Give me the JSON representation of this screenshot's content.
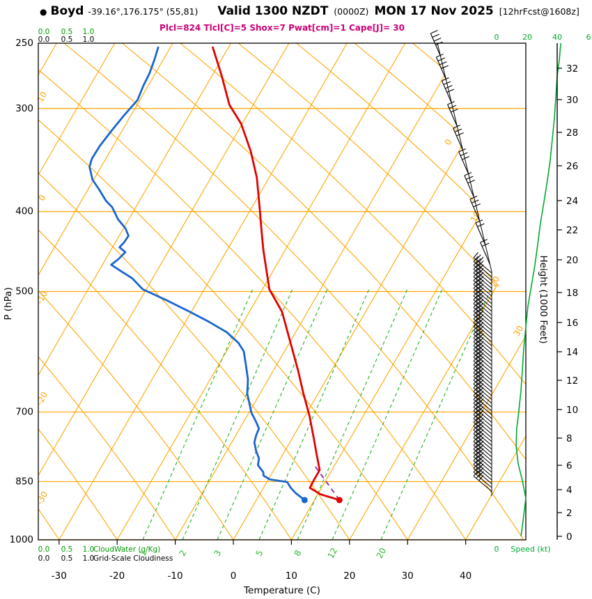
{
  "header": {
    "marker": "●",
    "station": "Boyd",
    "coords": "-39.16°,176.175° (55,81)",
    "valid": "Valid 1300 NZDT",
    "valid_z": "(0000Z)",
    "valid_date": "MON 17 Nov 2025",
    "fcst_tag": "[12hrFcst@1608z]",
    "indices": "Plcl=824 Tlcl[C]=5 Shox=7 Pwat[cm]=1 Cape[J]= 30"
  },
  "axes": {
    "pressure": {
      "title": "P (hPa)",
      "ticks": [
        "250",
        "300",
        "400",
        "500",
        "700",
        "850",
        "1000"
      ]
    },
    "temperature": {
      "title": "Temperature (C)",
      "ticks": [
        "-30",
        "-20",
        "-10",
        "0",
        "10",
        "20",
        "30",
        "40"
      ]
    },
    "height": {
      "title": "Height (1000 Feet)",
      "ticks": [
        "0",
        "2",
        "4",
        "6",
        "8",
        "10",
        "12",
        "14",
        "16",
        "18",
        "20",
        "22",
        "24",
        "26",
        "28",
        "30",
        "32"
      ]
    },
    "speed": {
      "title": "Speed (kt)",
      "top_ticks": [
        "0",
        "20",
        "40",
        "6"
      ],
      "bottom_tick": "0"
    },
    "cloudwater": {
      "scale": [
        "0.0",
        "0.5",
        "1.0"
      ],
      "label": "CloudWater (g/Kg)"
    },
    "cloudiness": {
      "scale": [
        "0.0",
        "0.5",
        "1.0"
      ],
      "label": "Grid-Scale Cloudiness"
    },
    "isotherm_labels_left": [
      "10",
      "0",
      "-10",
      "-20",
      "-30"
    ],
    "isotherm_labels_right": [
      "0",
      "10",
      "20",
      "30"
    ],
    "mixing_ratio_labels": [
      "1",
      "2",
      "3",
      "5",
      "8",
      "12",
      "20"
    ]
  },
  "colors": {
    "grid_orange": "#ffa500",
    "mixing_green": "#2eb82e",
    "speed_green": "#00a830",
    "label_green": "#009900",
    "temp_red": "#e10000",
    "dew_blue": "#1a66cc",
    "parcel_purple": "#993399",
    "indices_magenta": "#cc0077"
  },
  "chart_data": {
    "type": "skewt-log-p-sounding",
    "pressure_axis_range_hPa": [
      250,
      1000
    ],
    "temperature_axis_range_C": [
      -35,
      45
    ],
    "height_axis_range_kft": [
      0,
      32
    ],
    "speed_axis_range_kt": [
      0,
      60
    ],
    "pressure_gridlines_hPa": [
      300,
      400,
      500,
      700,
      850,
      1000
    ],
    "temperature_profile_p_t": [
      [
        895,
        14.3
      ],
      [
        881,
        10.5
      ],
      [
        865,
        8.0
      ],
      [
        848,
        7.9
      ],
      [
        823,
        7.9
      ],
      [
        791,
        6.0
      ],
      [
        753,
        3.7
      ],
      [
        707,
        0.7
      ],
      [
        664,
        -2.6
      ],
      [
        624,
        -5.7
      ],
      [
        574,
        -10.1
      ],
      [
        529,
        -14.4
      ],
      [
        497,
        -18.8
      ],
      [
        446,
        -23.7
      ],
      [
        420,
        -26.2
      ],
      [
        395,
        -28.7
      ],
      [
        364,
        -32.1
      ],
      [
        338,
        -35.8
      ],
      [
        313,
        -40.2
      ],
      [
        297,
        -44.1
      ],
      [
        274,
        -48.3
      ],
      [
        253,
        -52.7
      ]
    ],
    "dewpoint_profile_p_t": [
      [
        895,
        8.3
      ],
      [
        878,
        6.1
      ],
      [
        865,
        4.7
      ],
      [
        851,
        3.5
      ],
      [
        845,
        0.3
      ],
      [
        836,
        -1.2
      ],
      [
        828,
        -1.6
      ],
      [
        812,
        -3.2
      ],
      [
        797,
        -3.7
      ],
      [
        781,
        -4.9
      ],
      [
        762,
        -6.1
      ],
      [
        747,
        -6.5
      ],
      [
        733,
        -6.7
      ],
      [
        719,
        -7.9
      ],
      [
        701,
        -9.6
      ],
      [
        684,
        -10.8
      ],
      [
        665,
        -12.2
      ],
      [
        639,
        -13.5
      ],
      [
        615,
        -15.2
      ],
      [
        591,
        -17.0
      ],
      [
        577,
        -18.8
      ],
      [
        560,
        -21.9
      ],
      [
        544,
        -26.0
      ],
      [
        528,
        -30.6
      ],
      [
        513,
        -35.2
      ],
      [
        497,
        -40.6
      ],
      [
        482,
        -43.5
      ],
      [
        473,
        -46.0
      ],
      [
        464,
        -48.5
      ],
      [
        457,
        -47.8
      ],
      [
        448,
        -47.3
      ],
      [
        442,
        -48.8
      ],
      [
        436,
        -48.5
      ],
      [
        428,
        -48.4
      ],
      [
        419,
        -49.7
      ],
      [
        409,
        -51.8
      ],
      [
        395,
        -54.1
      ],
      [
        388,
        -55.8
      ],
      [
        376,
        -58.1
      ],
      [
        366,
        -60.2
      ],
      [
        353,
        -62.0
      ],
      [
        345,
        -62.4
      ],
      [
        333,
        -62.3
      ],
      [
        319,
        -61.8
      ],
      [
        306,
        -61.2
      ],
      [
        293,
        -60.4
      ],
      [
        282,
        -60.8
      ],
      [
        272,
        -61.0
      ],
      [
        262,
        -61.5
      ],
      [
        253,
        -62.1
      ]
    ],
    "parcel_path_p_t": [
      [
        895,
        14.3
      ],
      [
        810,
        6.3
      ]
    ],
    "surface_points": {
      "temperature": [
        895,
        14.3
      ],
      "dewpoint": [
        895,
        8.3
      ]
    },
    "wind_speed_profile_p_kt": [
      [
        990,
        16.4
      ],
      [
        934,
        18.2
      ],
      [
        890,
        19.5
      ],
      [
        848,
        17.3
      ],
      [
        808,
        14.5
      ],
      [
        769,
        13.2
      ],
      [
        733,
        13.6
      ],
      [
        698,
        15.0
      ],
      [
        658,
        16.4
      ],
      [
        621,
        17.3
      ],
      [
        586,
        18.2
      ],
      [
        553,
        19.5
      ],
      [
        521,
        20.9
      ],
      [
        492,
        23.2
      ],
      [
        464,
        25.5
      ],
      [
        438,
        27.3
      ],
      [
        413,
        29.1
      ],
      [
        389,
        31.4
      ],
      [
        367,
        33.6
      ],
      [
        346,
        35.5
      ],
      [
        327,
        36.8
      ],
      [
        308,
        38.2
      ],
      [
        291,
        39.1
      ],
      [
        274,
        40.0
      ],
      [
        262,
        41.4
      ],
      [
        250,
        42.3
      ]
    ]
  }
}
